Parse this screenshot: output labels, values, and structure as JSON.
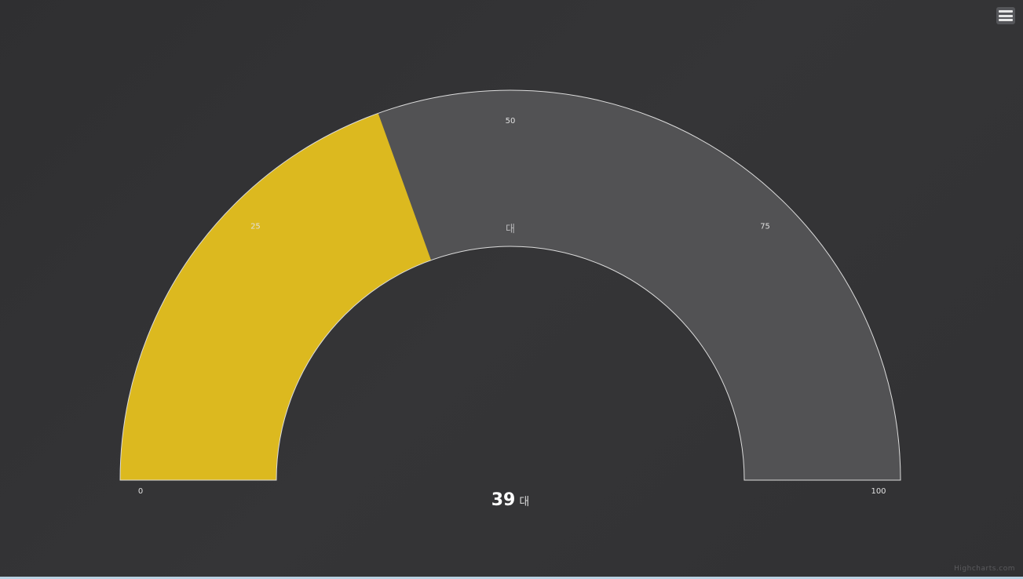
{
  "menu": {
    "icon": "hamburger-menu-icon"
  },
  "credits": "Highcharts.com",
  "chart_data": {
    "type": "gauge",
    "subtype": "solidgauge-semicircle",
    "value": 39,
    "min": 0,
    "max": 100,
    "unit": "대",
    "center_unit_label": "대",
    "ticks": [
      {
        "value": 0,
        "label": "0"
      },
      {
        "value": 25,
        "label": "25"
      },
      {
        "value": 50,
        "label": "50"
      },
      {
        "value": 75,
        "label": "75"
      },
      {
        "value": 100,
        "label": "100"
      }
    ],
    "data_label": {
      "value": "39",
      "unit": "대"
    },
    "colors": {
      "fill": "#dcb91f",
      "track": "#525254",
      "border": "#dcdcdc",
      "tick_label": "#e0e0e0",
      "value_label": "#ffffff"
    }
  }
}
